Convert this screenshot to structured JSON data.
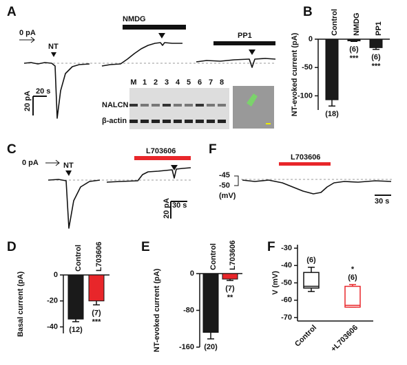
{
  "panel_labels": [
    "A",
    "B",
    "C",
    "F",
    "D",
    "E",
    "F"
  ],
  "traces": {
    "a": {
      "zero": "0 pA",
      "nt": "NT",
      "nmdg": "NMDG",
      "pp1": "PP1",
      "time_scale": "20 s",
      "current_scale": "20 pA"
    },
    "gel": {
      "lanes": [
        "M",
        "1",
        "2",
        "3",
        "4",
        "5",
        "6",
        "7",
        "8"
      ],
      "rows": [
        "NALCN",
        "β-actin"
      ]
    },
    "c": {
      "zero": "0 pA",
      "nt": "NT",
      "drug": "L703606",
      "time_scale": "30 s",
      "current_scale": "20 pA"
    },
    "f": {
      "drug": "L703606",
      "levels": [
        "-45",
        "-50"
      ],
      "unit": "(mV)",
      "time_scale": "30 s"
    }
  },
  "chart_data": [
    {
      "type": "bar",
      "y_label": "NT-evoked current (pA)",
      "categories": [
        "Control",
        "NMDG",
        "PP1"
      ],
      "values": [
        -107,
        -3,
        -15
      ],
      "errors": [
        11,
        1,
        3
      ],
      "colors": [
        "#1a1a1a",
        "#1a1a1a",
        "#1a1a1a"
      ],
      "n_labels": [
        "(18)",
        "(6)",
        "(6)"
      ],
      "sig_labels": [
        null,
        "***",
        "***"
      ],
      "ylim": [
        -125,
        0
      ],
      "yticks": [
        0,
        -50,
        -100
      ]
    },
    {
      "type": "bar",
      "y_label": "Basal current (pA)",
      "categories": [
        "Control",
        "L703606"
      ],
      "values": [
        -34,
        -20
      ],
      "errors": [
        2,
        3
      ],
      "colors": [
        "#1a1a1a",
        "#e8262a"
      ],
      "n_labels": [
        "(12)",
        "(7)"
      ],
      "sig_labels": [
        null,
        "***"
      ],
      "ylim": [
        -45,
        0
      ],
      "yticks": [
        0,
        -20,
        -40
      ]
    },
    {
      "type": "bar",
      "y_label": "NT-evoked current (pA)",
      "categories": [
        "Control",
        "L703606"
      ],
      "values": [
        -128,
        -12
      ],
      "errors": [
        14,
        3
      ],
      "colors": [
        "#1a1a1a",
        "#e8262a"
      ],
      "n_labels": [
        "(20)",
        "(7)"
      ],
      "sig_labels": [
        null,
        "**"
      ],
      "ylim": [
        -160,
        0
      ],
      "yticks": [
        0,
        -80,
        -160
      ]
    },
    {
      "type": "box",
      "y_label": "V (mV)",
      "categories": [
        "Control",
        "+L703606"
      ],
      "min": [
        -55,
        -64
      ],
      "q1": [
        -53,
        -64
      ],
      "median": [
        -52,
        -63
      ],
      "q3": [
        -44,
        -52
      ],
      "max": [
        -41,
        -51
      ],
      "colors": [
        "#111111",
        "#e8262a"
      ],
      "n_labels": [
        "(6)",
        "(6)"
      ],
      "sig_labels": [
        null,
        "*"
      ],
      "ylim": [
        -72,
        -28
      ],
      "yticks": [
        -30,
        -40,
        -50,
        -60,
        -70
      ]
    }
  ]
}
